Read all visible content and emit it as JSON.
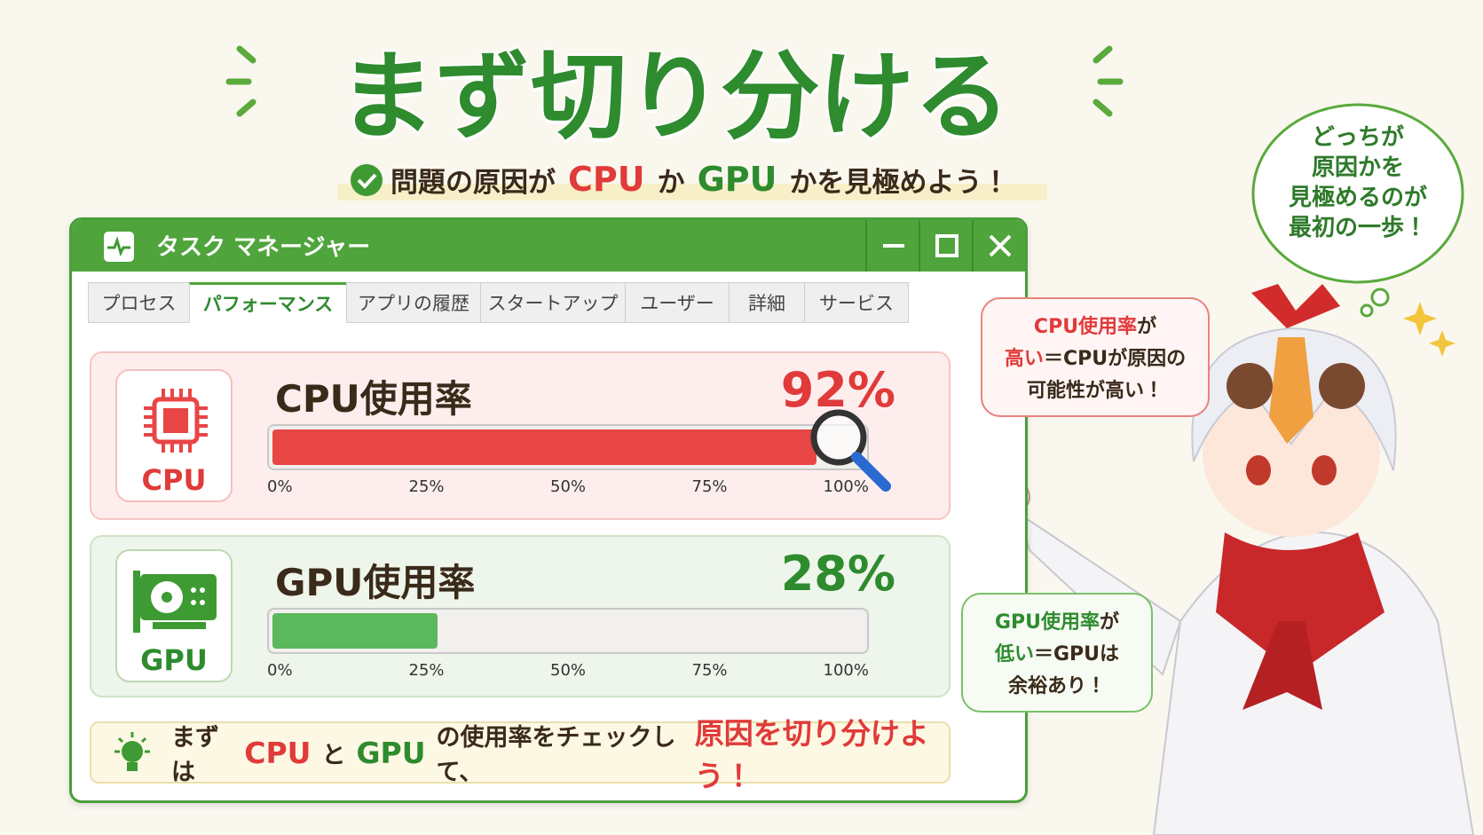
{
  "header": {
    "title": "まず切り分ける",
    "subtitle": [
      {
        "text": "問題の原因が"
      },
      {
        "text": "CPU",
        "color": "#e03a3a"
      },
      {
        "text": "か"
      },
      {
        "text": "GPU",
        "color": "#2e8b2e"
      },
      {
        "text": "かを見極めよう！"
      }
    ]
  },
  "window": {
    "title": "タスク マネージャー",
    "tabs": [
      "プロセス",
      "パフォーマンス",
      "アプリの履歴",
      "スタートアップ",
      "ユーザー",
      "詳細",
      "サービス"
    ],
    "active_tab": 1
  },
  "cpu": {
    "icon_label": "CPU",
    "label": "CPU使用率",
    "value": 92,
    "value_label": "92%",
    "color": "#e84545",
    "ticks": [
      {
        "value": 0,
        "label": "0%"
      },
      {
        "value": 25,
        "label": "25%"
      },
      {
        "value": 50,
        "label": "50%"
      },
      {
        "value": 75,
        "label": "75%"
      },
      {
        "value": 100,
        "label": "100%"
      }
    ]
  },
  "gpu": {
    "icon_label": "GPU",
    "label": "GPU使用率",
    "value": 28,
    "value_label": "28%",
    "color": "#5cb85c",
    "ticks": [
      {
        "value": 0,
        "label": "0%"
      },
      {
        "value": 25,
        "label": "25%"
      },
      {
        "value": 50,
        "label": "50%"
      },
      {
        "value": 75,
        "label": "75%"
      },
      {
        "value": 100,
        "label": "100%"
      }
    ]
  },
  "tip": [
    {
      "text": "まずは"
    },
    {
      "text": "CPU",
      "color": "#e03a3a"
    },
    {
      "text": "と"
    },
    {
      "text": "GPU",
      "color": "#2e8b2e"
    },
    {
      "text": "の使用率をチェックして、"
    },
    {
      "text": "原因を切り分けよう！",
      "color": "#e03a3a"
    }
  ],
  "bubbles": {
    "cpu": [
      [
        {
          "text": "CPU使用率",
          "color": "#e03a3a"
        },
        {
          "text": "が"
        }
      ],
      [
        {
          "text": "高い",
          "color": "#e03a3a"
        },
        {
          "text": "＝CPUが原因の"
        }
      ],
      [
        {
          "text": "可能性が高い！"
        }
      ]
    ],
    "gpu": [
      [
        {
          "text": "GPU使用率",
          "color": "#2e8b2e"
        },
        {
          "text": "が"
        }
      ],
      [
        {
          "text": "低い",
          "color": "#2e8b2e"
        },
        {
          "text": "＝GPUは"
        }
      ],
      [
        {
          "text": "余裕あり！"
        }
      ]
    ],
    "thought": [
      "どっちが",
      "原因かを",
      "見極めるのが",
      "最初の一歩！"
    ]
  }
}
